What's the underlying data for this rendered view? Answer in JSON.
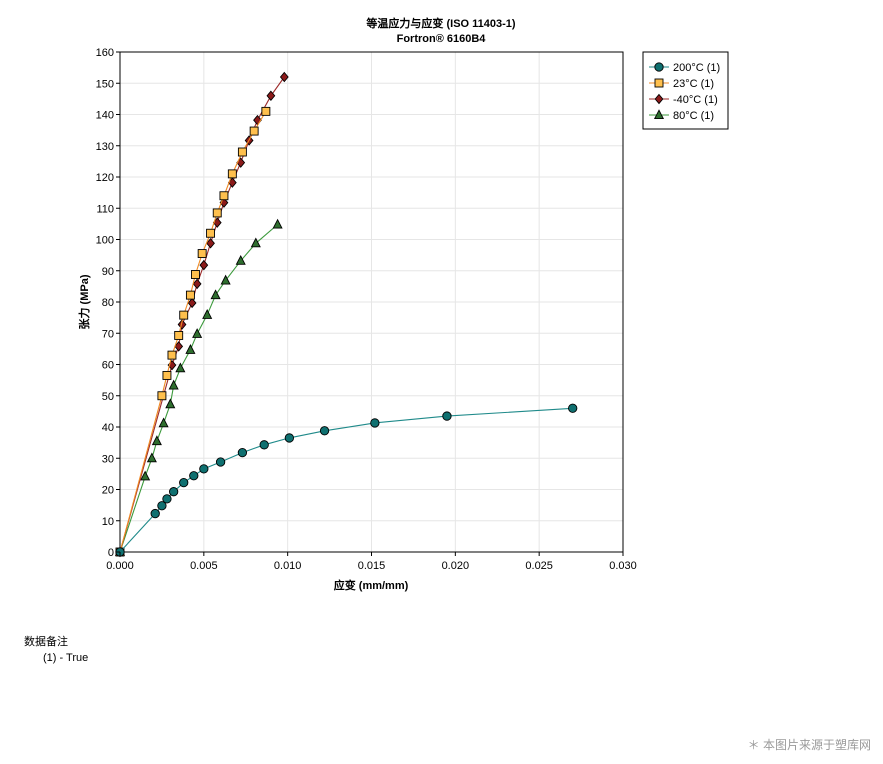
{
  "chart_data": {
    "type": "line",
    "title": "等温应力与应变 (ISO 11403-1)",
    "subtitle": "Fortron® 6160B4",
    "xlabel": "应变 (mm/mm)",
    "ylabel": "张力 (MPa)",
    "xlim": [
      0,
      0.03
    ],
    "ylim": [
      0,
      160
    ],
    "xticks": [
      "0.000",
      "0.005",
      "0.010",
      "0.015",
      "0.020",
      "0.025",
      "0.030"
    ],
    "yticks": [
      "0",
      "10",
      "20",
      "30",
      "40",
      "50",
      "60",
      "70",
      "80",
      "90",
      "100",
      "110",
      "120",
      "130",
      "140",
      "150",
      "160"
    ],
    "grid": true,
    "legend_position": "top-right",
    "series": [
      {
        "name": "200°C (1)",
        "marker": "circle",
        "line_color": "#1f8a8a",
        "fill_color": "#0f7070",
        "points": [
          [
            0,
            0
          ],
          [
            0.0021,
            12.3
          ],
          [
            0.0025,
            14.8
          ],
          [
            0.0028,
            17
          ],
          [
            0.0032,
            19.3
          ],
          [
            0.0038,
            22.2
          ],
          [
            0.0044,
            24.4
          ],
          [
            0.005,
            26.6
          ],
          [
            0.006,
            28.8
          ],
          [
            0.0073,
            31.8
          ],
          [
            0.0086,
            34.3
          ],
          [
            0.0101,
            36.5
          ],
          [
            0.0122,
            38.8
          ],
          [
            0.0152,
            41.3
          ],
          [
            0.0195,
            43.5
          ],
          [
            0.027,
            46
          ]
        ]
      },
      {
        "name": "23°C (1)",
        "marker": "square",
        "line_color": "#f08a24",
        "fill_color": "#ffc04d",
        "points": [
          [
            0,
            0
          ],
          [
            0.0025,
            50
          ],
          [
            0.0028,
            56.5
          ],
          [
            0.0031,
            63
          ],
          [
            0.0035,
            69.3
          ],
          [
            0.0038,
            75.8
          ],
          [
            0.0042,
            82.2
          ],
          [
            0.0045,
            88.8
          ],
          [
            0.0049,
            95.5
          ],
          [
            0.0054,
            102
          ],
          [
            0.0058,
            108.5
          ],
          [
            0.0062,
            114
          ],
          [
            0.0067,
            121
          ],
          [
            0.0073,
            128
          ],
          [
            0.008,
            134.7
          ],
          [
            0.0087,
            141
          ]
        ]
      },
      {
        "name": "-40°C (1)",
        "marker": "diamond",
        "line_color": "#9c2a2a",
        "fill_color": "#8b1a1a",
        "points": [
          [
            0,
            0
          ],
          [
            0.0031,
            59.8
          ],
          [
            0.0035,
            65.8
          ],
          [
            0.0037,
            72.8
          ],
          [
            0.0043,
            79.7
          ],
          [
            0.0046,
            85.8
          ],
          [
            0.005,
            91.8
          ],
          [
            0.0054,
            98.8
          ],
          [
            0.0058,
            105.4
          ],
          [
            0.0062,
            111.8
          ],
          [
            0.0067,
            118.2
          ],
          [
            0.0072,
            124.6
          ],
          [
            0.0077,
            131.7
          ],
          [
            0.0082,
            138.2
          ],
          [
            0.009,
            146
          ],
          [
            0.0098,
            152
          ]
        ]
      },
      {
        "name": "80°C (1)",
        "marker": "triangle",
        "line_color": "#3c9a3c",
        "fill_color": "#2e6e2e",
        "points": [
          [
            0,
            0
          ],
          [
            0.0015,
            24.2
          ],
          [
            0.0019,
            30
          ],
          [
            0.0022,
            35.5
          ],
          [
            0.0026,
            41.2
          ],
          [
            0.003,
            47.3
          ],
          [
            0.0032,
            53.3
          ],
          [
            0.0036,
            58.8
          ],
          [
            0.0042,
            64.7
          ],
          [
            0.0046,
            69.8
          ],
          [
            0.0052,
            75.9
          ],
          [
            0.0057,
            82.2
          ],
          [
            0.0063,
            86.9
          ],
          [
            0.0072,
            93.2
          ],
          [
            0.0081,
            98.8
          ],
          [
            0.0094,
            104.8
          ]
        ]
      }
    ]
  },
  "notes": {
    "title": "数据备注",
    "entries": [
      "(1)  -  True"
    ]
  },
  "watermark": "＊ 本图片来源于塑库网"
}
